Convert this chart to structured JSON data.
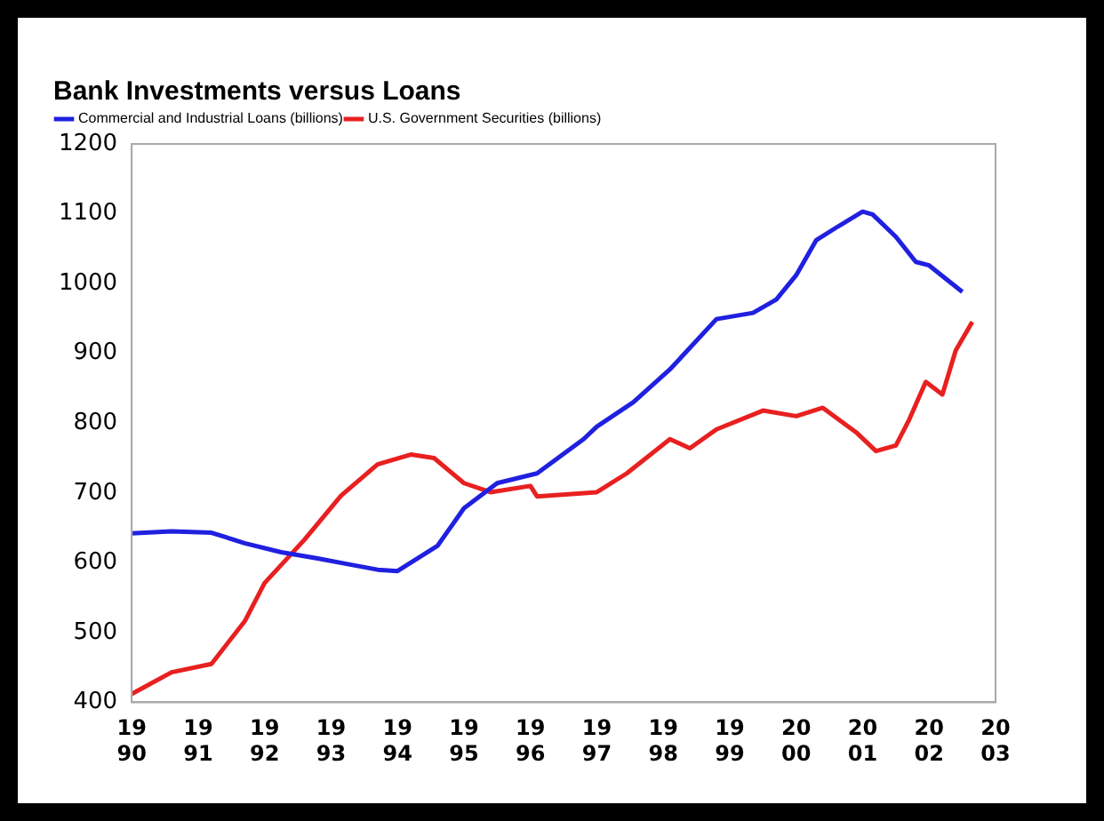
{
  "chart_data": {
    "type": "line",
    "title": "Bank Investments versus Loans",
    "xlim": [
      1990,
      2003
    ],
    "xticks": [
      1990,
      1991,
      1992,
      1993,
      1994,
      1995,
      1996,
      1997,
      1998,
      1999,
      2000,
      2001,
      2002,
      2003
    ],
    "ylim": [
      400,
      1200
    ],
    "yticks": [
      400,
      500,
      600,
      700,
      800,
      900,
      1000,
      1100,
      1200
    ],
    "grid": false,
    "legend": "top left",
    "marker": "none",
    "line_style": "solid",
    "series": [
      {
        "name": "Commercial and Industrial Loans (billions)",
        "color": "#2020e0",
        "x": [
          1990.0,
          1990.6,
          1991.2,
          1991.7,
          1992.25,
          1992.8,
          1993.25,
          1993.7,
          1994.0,
          1994.6,
          1995.0,
          1995.5,
          1996.1,
          1996.8,
          1997.0,
          1997.55,
          1998.1,
          1998.8,
          1999.35,
          1999.7,
          2000.0,
          2000.3,
          2000.6,
          2001.0,
          2001.15,
          2001.5,
          2001.8,
          2002.0,
          2002.5
        ],
        "values": [
          642,
          645,
          643,
          628,
          615,
          606,
          598,
          590,
          588,
          624,
          678,
          714,
          728,
          777,
          795,
          830,
          877,
          949,
          958,
          977,
          1012,
          1062,
          1080,
          1103,
          1099,
          1067,
          1031,
          1026,
          988
        ]
      },
      {
        "name": "U.S. Government Securities (billions)",
        "color": "#e82020",
        "x": [
          1990.0,
          1990.6,
          1991.2,
          1991.7,
          1992.0,
          1992.6,
          1993.15,
          1993.7,
          1994.2,
          1994.55,
          1995.0,
          1995.4,
          1996.0,
          1996.1,
          1997.0,
          1997.45,
          1998.1,
          1998.4,
          1998.8,
          1999.5,
          2000.0,
          2000.4,
          2000.9,
          2001.2,
          2001.5,
          2001.7,
          2001.95,
          2002.2,
          2002.4,
          2002.65
        ],
        "values": [
          412,
          443,
          455,
          516,
          571,
          633,
          696,
          741,
          755,
          750,
          714,
          701,
          710,
          695,
          701,
          728,
          777,
          764,
          791,
          818,
          810,
          822,
          787,
          760,
          768,
          805,
          859,
          841,
          904,
          945
        ]
      }
    ]
  }
}
